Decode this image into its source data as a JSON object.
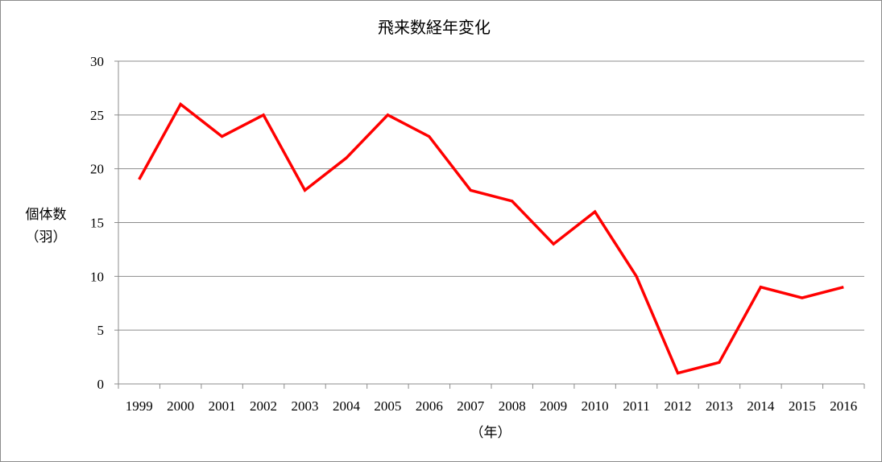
{
  "chart_data": {
    "type": "line",
    "title": "飛来数経年変化",
    "xlabel": "（年）",
    "ylabel_line1": "個体数",
    "ylabel_line2": "（羽）",
    "ylim": [
      0,
      30
    ],
    "yticks": [
      0,
      5,
      10,
      15,
      20,
      25,
      30
    ],
    "grid": true,
    "legend": "none",
    "categories": [
      "1999",
      "2000",
      "2001",
      "2002",
      "2003",
      "2004",
      "2005",
      "2006",
      "2007",
      "2008",
      "2009",
      "2010",
      "2011",
      "2012",
      "2013",
      "2014",
      "2015",
      "2016"
    ],
    "series": [
      {
        "color": "#ff0000",
        "values": [
          19,
          26,
          23,
          25,
          18,
          21,
          25,
          23,
          18,
          17,
          13,
          16,
          10,
          1,
          2,
          9,
          8,
          9
        ]
      }
    ]
  },
  "colors": {
    "line": "#ff0000",
    "grid": "#8c8c8c",
    "axis": "#8c8c8c",
    "frame": "#8c8c8c"
  }
}
